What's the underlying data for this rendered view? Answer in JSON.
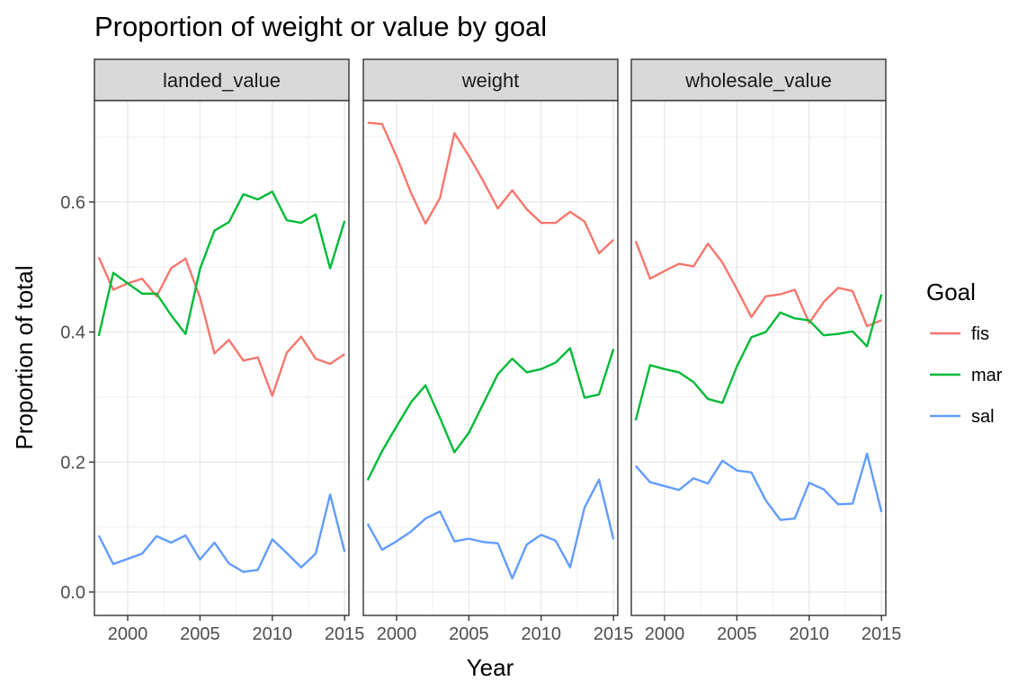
{
  "chart_data": {
    "type": "line",
    "title": "Proportion of weight or value by goal",
    "xlabel": "Year",
    "ylabel": "Proportion of total",
    "xlim": [
      1997.7,
      2015.3
    ],
    "ylim": [
      -0.036,
      0.756
    ],
    "x_ticks": [
      2000,
      2005,
      2010,
      2015
    ],
    "y_ticks": [
      0.0,
      0.2,
      0.4,
      0.6
    ],
    "x_tick_labels": [
      "2000",
      "2005",
      "2010",
      "2015"
    ],
    "y_tick_labels": [
      "0.0",
      "0.2",
      "0.4",
      "0.6"
    ],
    "grid": true,
    "legend": {
      "title": "Goal",
      "placement": "right",
      "entries": [
        "fis",
        "mar",
        "sal"
      ]
    },
    "colors": {
      "fis": "#F8766D",
      "mar": "#00BA38",
      "sal": "#619CFF"
    },
    "x": [
      1998,
      1999,
      2000,
      2001,
      2002,
      2003,
      2004,
      2005,
      2006,
      2007,
      2008,
      2009,
      2010,
      2011,
      2012,
      2013,
      2014,
      2015
    ],
    "panels": [
      {
        "label": "landed_value",
        "series": [
          {
            "name": "fis",
            "values": [
              0.515,
              0.465,
              0.475,
              0.482,
              0.455,
              0.498,
              0.513,
              0.453,
              0.367,
              0.388,
              0.356,
              0.361,
              0.302,
              0.368,
              0.393,
              0.359,
              0.351,
              0.366
            ]
          },
          {
            "name": "mar",
            "values": [
              0.394,
              0.491,
              0.475,
              0.459,
              0.459,
              0.426,
              0.397,
              0.497,
              0.556,
              0.569,
              0.612,
              0.604,
              0.616,
              0.572,
              0.568,
              0.581,
              0.498,
              0.571
            ]
          },
          {
            "name": "sal",
            "values": [
              0.087,
              0.043,
              0.051,
              0.059,
              0.086,
              0.076,
              0.087,
              0.05,
              0.076,
              0.044,
              0.031,
              0.034,
              0.081,
              0.06,
              0.038,
              0.059,
              0.15,
              0.062
            ]
          }
        ]
      },
      {
        "label": "weight",
        "series": [
          {
            "name": "fis",
            "values": [
              0.722,
              0.72,
              0.67,
              0.614,
              0.567,
              0.606,
              0.706,
              0.671,
              0.632,
              0.59,
              0.618,
              0.589,
              0.568,
              0.568,
              0.585,
              0.57,
              0.521,
              0.542
            ]
          },
          {
            "name": "mar",
            "values": [
              0.172,
              0.217,
              0.255,
              0.292,
              0.318,
              0.268,
              0.215,
              0.245,
              0.29,
              0.335,
              0.359,
              0.338,
              0.343,
              0.353,
              0.375,
              0.299,
              0.304,
              0.374
            ]
          },
          {
            "name": "sal",
            "values": [
              0.105,
              0.065,
              0.078,
              0.093,
              0.113,
              0.124,
              0.078,
              0.082,
              0.077,
              0.075,
              0.021,
              0.073,
              0.088,
              0.079,
              0.038,
              0.13,
              0.173,
              0.081
            ]
          }
        ]
      },
      {
        "label": "wholesale_value",
        "series": [
          {
            "name": "fis",
            "values": [
              0.54,
              0.482,
              0.494,
              0.505,
              0.501,
              0.536,
              0.507,
              0.466,
              0.423,
              0.455,
              0.458,
              0.465,
              0.414,
              0.446,
              0.468,
              0.463,
              0.409,
              0.418
            ]
          },
          {
            "name": "mar",
            "values": [
              0.264,
              0.349,
              0.343,
              0.338,
              0.323,
              0.297,
              0.291,
              0.347,
              0.392,
              0.4,
              0.43,
              0.421,
              0.418,
              0.395,
              0.397,
              0.401,
              0.378,
              0.458
            ]
          },
          {
            "name": "sal",
            "values": [
              0.194,
              0.169,
              0.163,
              0.157,
              0.175,
              0.167,
              0.202,
              0.187,
              0.184,
              0.141,
              0.111,
              0.113,
              0.168,
              0.158,
              0.135,
              0.136,
              0.213,
              0.123
            ]
          }
        ]
      }
    ]
  }
}
